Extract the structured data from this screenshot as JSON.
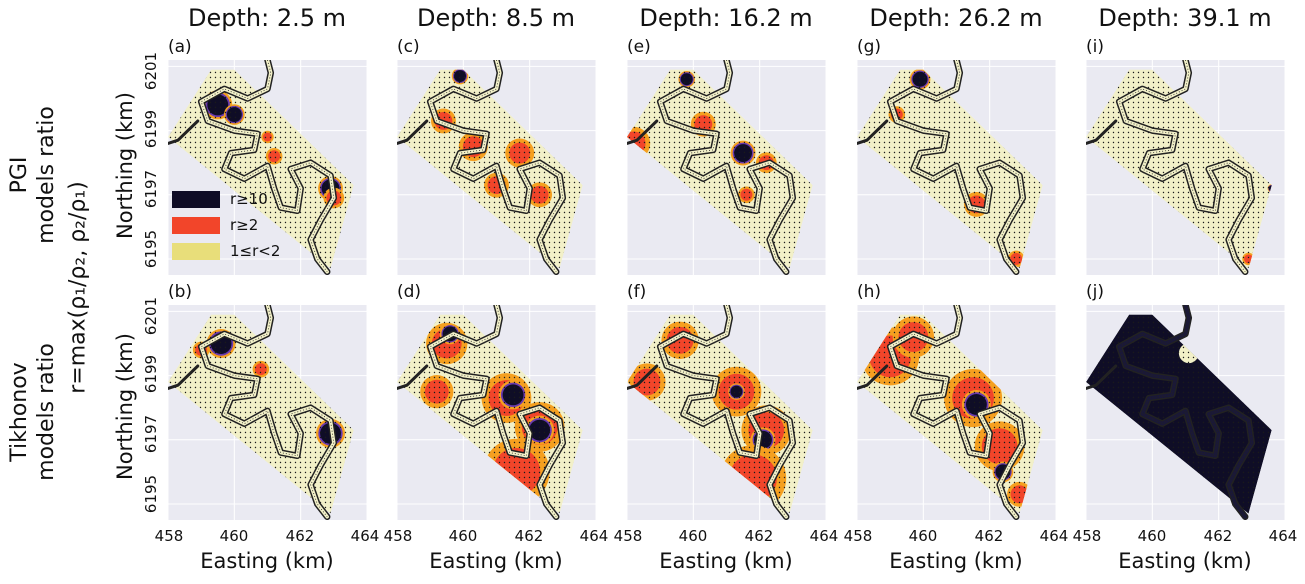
{
  "figure": {
    "column_titles": [
      "Depth: 2.5 m",
      "Depth: 8.5 m",
      "Depth: 16.2 m",
      "Depth: 26.2 m",
      "Depth: 39.1 m"
    ],
    "row_labels": [
      {
        "line1": "PGI",
        "line2": "models ratio"
      },
      {
        "line1": "Tikhonov",
        "line2": "models ratio"
      }
    ],
    "ratio_label": "r=max(ρ₁/ρ₂, ρ₂/ρ₁)",
    "panel_labels_top": [
      "(a)",
      "(c)",
      "(e)",
      "(g)",
      "(i)"
    ],
    "panel_labels_bottom": [
      "(b)",
      "(d)",
      "(f)",
      "(h)",
      "(j)"
    ],
    "ylabel": "Northing (km)",
    "xlabel": "Easting (km)",
    "y_ticks": [
      "6195",
      "6197",
      "6199",
      "6201"
    ],
    "x_ticks": [
      "458",
      "460",
      "462",
      "464"
    ],
    "legend": [
      {
        "label": "r≥10",
        "color": "#0f0d26"
      },
      {
        "label": "r≥2",
        "color": "#f2452a"
      },
      {
        "label": "1≤r<2",
        "color": "#e8de7a"
      }
    ],
    "colors": {
      "background": "#eaeaf2",
      "survey": "#f2f0c8",
      "dots": "#1a1a1a",
      "river": "#222222",
      "high": "#0f0d26",
      "mid": "#f2452a",
      "edge": "#f5a020",
      "purple": "#6a3ab0"
    }
  },
  "chart_data": {
    "type": "heatmap",
    "x_unit": "km",
    "y_unit": "km",
    "xlim": [
      458,
      464
    ],
    "ylim": [
      6194.5,
      6201.2
    ],
    "x_ticks": [
      458,
      460,
      462,
      464
    ],
    "y_ticks": [
      6195,
      6197,
      6199,
      6201
    ],
    "grid": true,
    "legend_position": "left, inside panel (a)",
    "categories": [
      "1≤r<2",
      "r≥2",
      "r≥10"
    ],
    "depths_m": [
      2.5,
      8.5,
      16.2,
      26.2,
      39.1
    ],
    "rows": [
      "PGI models ratio",
      "Tikhonov models ratio"
    ],
    "panels": [
      {
        "label": "(a)",
        "row": "PGI models ratio",
        "depth_m": 2.5,
        "anomalies": [
          {
            "x": 459.5,
            "y": 6199.8,
            "r": 0.35,
            "class": "r≥10"
          },
          {
            "x": 460.0,
            "y": 6199.5,
            "r": 0.25,
            "class": "r≥10"
          },
          {
            "x": 461.2,
            "y": 6198.2,
            "r": 0.2,
            "class": "r≥2"
          },
          {
            "x": 462.9,
            "y": 6197.2,
            "r": 0.3,
            "class": "r≥10"
          },
          {
            "x": 463.0,
            "y": 6196.9,
            "r": 0.25,
            "class": "r≥2"
          },
          {
            "x": 461.0,
            "y": 6198.8,
            "r": 0.15,
            "class": "r≥2"
          }
        ]
      },
      {
        "label": "(c)",
        "row": "PGI models ratio",
        "depth_m": 8.5,
        "anomalies": [
          {
            "x": 459.9,
            "y": 6200.7,
            "r": 0.2,
            "class": "r≥10"
          },
          {
            "x": 459.4,
            "y": 6199.3,
            "r": 0.3,
            "class": "r≥2"
          },
          {
            "x": 460.3,
            "y": 6198.5,
            "r": 0.35,
            "class": "r≥2"
          },
          {
            "x": 461.7,
            "y": 6198.3,
            "r": 0.35,
            "class": "r≥2"
          },
          {
            "x": 462.3,
            "y": 6197.0,
            "r": 0.3,
            "class": "r≥2"
          },
          {
            "x": 461.0,
            "y": 6197.3,
            "r": 0.3,
            "class": "r≥2"
          }
        ]
      },
      {
        "label": "(e)",
        "row": "PGI models ratio",
        "depth_m": 16.2,
        "anomalies": [
          {
            "x": 459.8,
            "y": 6200.6,
            "r": 0.2,
            "class": "r≥10"
          },
          {
            "x": 458.2,
            "y": 6198.6,
            "r": 0.4,
            "class": "r≥2"
          },
          {
            "x": 460.3,
            "y": 6199.2,
            "r": 0.3,
            "class": "r≥2"
          },
          {
            "x": 461.5,
            "y": 6198.3,
            "r": 0.3,
            "class": "r≥10"
          },
          {
            "x": 462.2,
            "y": 6198.0,
            "r": 0.25,
            "class": "r≥2"
          },
          {
            "x": 461.6,
            "y": 6197.0,
            "r": 0.2,
            "class": "r≥2"
          }
        ]
      },
      {
        "label": "(g)",
        "row": "PGI models ratio",
        "depth_m": 26.2,
        "anomalies": [
          {
            "x": 459.9,
            "y": 6200.6,
            "r": 0.25,
            "class": "r≥10"
          },
          {
            "x": 459.2,
            "y": 6199.5,
            "r": 0.2,
            "class": "r≥2"
          },
          {
            "x": 461.6,
            "y": 6196.7,
            "r": 0.3,
            "class": "r≥2"
          },
          {
            "x": 462.8,
            "y": 6195.0,
            "r": 0.2,
            "class": "r≥2"
          }
        ]
      },
      {
        "label": "(i)",
        "row": "PGI models ratio",
        "depth_m": 39.1,
        "anomalies": [
          {
            "x": 462.9,
            "y": 6195.0,
            "r": 0.15,
            "class": "r≥2"
          },
          {
            "x": 463.6,
            "y": 6197.2,
            "r": 0.1,
            "class": "r≥10"
          }
        ]
      },
      {
        "label": "(b)",
        "row": "Tikhonov models ratio",
        "depth_m": 2.5,
        "anomalies": [
          {
            "x": 459.6,
            "y": 6200.0,
            "r": 0.35,
            "class": "r≥10"
          },
          {
            "x": 460.8,
            "y": 6199.2,
            "r": 0.2,
            "class": "r≥2"
          },
          {
            "x": 462.9,
            "y": 6197.2,
            "r": 0.35,
            "class": "r≥10"
          },
          {
            "x": 459.0,
            "y": 6199.8,
            "r": 0.2,
            "class": "r≥2"
          }
        ]
      },
      {
        "label": "(d)",
        "row": "Tikhonov models ratio",
        "depth_m": 8.5,
        "anomalies": [
          {
            "x": 459.5,
            "y": 6200.0,
            "r": 0.5,
            "class": "r≥2"
          },
          {
            "x": 459.6,
            "y": 6200.3,
            "r": 0.25,
            "class": "r≥10"
          },
          {
            "x": 461.3,
            "y": 6198.3,
            "r": 0.6,
            "class": "r≥2"
          },
          {
            "x": 461.5,
            "y": 6198.4,
            "r": 0.35,
            "class": "r≥10"
          },
          {
            "x": 462.3,
            "y": 6197.4,
            "r": 0.6,
            "class": "r≥2"
          },
          {
            "x": 462.3,
            "y": 6197.3,
            "r": 0.35,
            "class": "r≥10"
          },
          {
            "x": 461.6,
            "y": 6196.0,
            "r": 0.8,
            "class": "r≥2"
          },
          {
            "x": 459.2,
            "y": 6198.5,
            "r": 0.4,
            "class": "r≥2"
          }
        ]
      },
      {
        "label": "(f)",
        "row": "Tikhonov models ratio",
        "depth_m": 16.2,
        "anomalies": [
          {
            "x": 459.6,
            "y": 6200.1,
            "r": 0.45,
            "class": "r≥2"
          },
          {
            "x": 461.3,
            "y": 6198.5,
            "r": 0.6,
            "class": "r≥2"
          },
          {
            "x": 461.3,
            "y": 6198.5,
            "r": 0.2,
            "class": "r≥10"
          },
          {
            "x": 462.2,
            "y": 6197.3,
            "r": 0.6,
            "class": "r≥2"
          },
          {
            "x": 462.1,
            "y": 6197.0,
            "r": 0.3,
            "class": "r≥10"
          },
          {
            "x": 461.8,
            "y": 6195.8,
            "r": 0.8,
            "class": "r≥2"
          },
          {
            "x": 458.6,
            "y": 6198.8,
            "r": 0.45,
            "class": "r≥2"
          }
        ]
      },
      {
        "label": "(h)",
        "row": "Tikhonov models ratio",
        "depth_m": 26.2,
        "anomalies": [
          {
            "x": 459.0,
            "y": 6199.6,
            "r": 0.7,
            "class": "r≥2"
          },
          {
            "x": 459.7,
            "y": 6200.2,
            "r": 0.5,
            "class": "r≥2"
          },
          {
            "x": 461.5,
            "y": 6198.3,
            "r": 0.7,
            "class": "r≥2"
          },
          {
            "x": 461.6,
            "y": 6198.1,
            "r": 0.35,
            "class": "r≥10"
          },
          {
            "x": 462.3,
            "y": 6196.8,
            "r": 0.6,
            "class": "r≥2"
          },
          {
            "x": 462.4,
            "y": 6196.0,
            "r": 0.25,
            "class": "r≥10"
          },
          {
            "x": 462.9,
            "y": 6195.3,
            "r": 0.3,
            "class": "r≥2"
          }
        ]
      },
      {
        "label": "(j)",
        "row": "Tikhonov models ratio",
        "depth_m": 39.1,
        "fill_class": "r≥10",
        "anomalies": [
          {
            "x": 461.1,
            "y": 6199.7,
            "r": 0.3,
            "class": "1≤r<2"
          }
        ]
      }
    ]
  }
}
